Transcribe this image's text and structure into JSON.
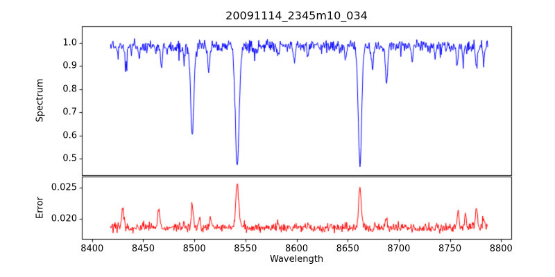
{
  "figure": {
    "background": "#ffffff",
    "axes_color": "#000000"
  },
  "chart_data": {
    "type": "line",
    "title": "20091114_2345m10_034",
    "xlabel": "Wavelength",
    "xlim": [
      8390,
      8810
    ],
    "xticks": {
      "values": [
        8400,
        8450,
        8500,
        8550,
        8600,
        8650,
        8700,
        8750,
        8800
      ],
      "labels": [
        "8400",
        "8450",
        "8500",
        "8550",
        "8600",
        "8650",
        "8700",
        "8750",
        "8800"
      ]
    },
    "x_data_range": [
      8418,
      8787
    ],
    "sample_step": 0.5,
    "grid": false,
    "legend": "none",
    "panels": [
      {
        "name": "spectrum",
        "ylabel": "Spectrum",
        "line_color": "#0000ff",
        "ylim": [
          0.43,
          1.07
        ],
        "yticks": {
          "values": [
            0.5,
            0.6,
            0.7,
            0.8,
            0.9,
            1.0
          ],
          "labels": [
            "0.5",
            "0.6",
            "0.7",
            "0.8",
            "0.9",
            "1.0"
          ]
        },
        "continuum": 0.985,
        "noise_sigma": 0.012,
        "lines_note": "absorption lines as [center_wavelength, depth, gaussian_sigma]",
        "lines": [
          [
            8425,
            0.05,
            0.8
          ],
          [
            8433,
            0.08,
            0.9
          ],
          [
            8446,
            0.05,
            0.8
          ],
          [
            8468,
            0.09,
            0.9
          ],
          [
            8490,
            0.05,
            0.7
          ],
          [
            8498,
            0.385,
            1.6
          ],
          [
            8514,
            0.11,
            1.0
          ],
          [
            8542,
            0.52,
            1.9
          ],
          [
            8560,
            0.04,
            0.8
          ],
          [
            8582,
            0.05,
            0.8
          ],
          [
            8598,
            0.07,
            0.9
          ],
          [
            8611,
            0.05,
            0.8
          ],
          [
            8648,
            0.06,
            0.8
          ],
          [
            8662,
            0.51,
            1.7
          ],
          [
            8674,
            0.09,
            0.9
          ],
          [
            8688,
            0.16,
            1.0
          ],
          [
            8713,
            0.05,
            0.8
          ],
          [
            8736,
            0.05,
            0.8
          ],
          [
            8757,
            0.09,
            0.9
          ],
          [
            8763,
            0.06,
            0.8
          ],
          [
            8776,
            0.1,
            0.9
          ],
          [
            8783,
            0.07,
            0.8
          ]
        ]
      },
      {
        "name": "error",
        "ylabel": "Error",
        "line_color": "#ff0000",
        "ylim": [
          0.0168,
          0.0268
        ],
        "yticks": {
          "values": [
            0.02,
            0.025
          ],
          "labels": [
            "0.020",
            "0.025"
          ]
        },
        "baseline": 0.0186,
        "noise_sigma": 0.00035,
        "lines_note": "error peaks as [center_wavelength, height, gaussian_sigma]",
        "lines": [
          [
            8430,
            0.0032,
            0.9
          ],
          [
            8465,
            0.0035,
            0.9
          ],
          [
            8490,
            0.001,
            0.8
          ],
          [
            8498,
            0.0035,
            1.0
          ],
          [
            8505,
            0.0014,
            0.8
          ],
          [
            8516,
            0.0016,
            0.8
          ],
          [
            8542,
            0.007,
            1.4
          ],
          [
            8582,
            0.0008,
            0.8
          ],
          [
            8648,
            0.0008,
            0.8
          ],
          [
            8662,
            0.0064,
            1.3
          ],
          [
            8688,
            0.0012,
            0.9
          ],
          [
            8758,
            0.0028,
            0.9
          ],
          [
            8765,
            0.0018,
            0.8
          ],
          [
            8776,
            0.0034,
            0.9
          ],
          [
            8783,
            0.0015,
            0.8
          ]
        ]
      }
    ]
  }
}
